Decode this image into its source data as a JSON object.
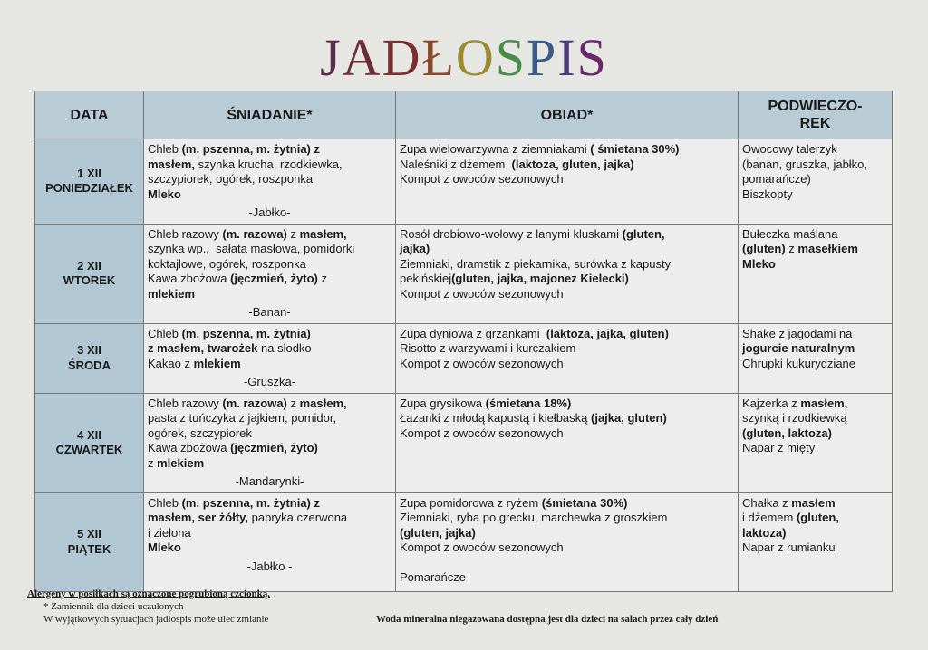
{
  "title": "JADŁOSPIS",
  "title_colors": [
    "#5a2a4a",
    "#6b2d3a",
    "#7a3030",
    "#8a4a2a",
    "#9a8a30",
    "#4a8a4a",
    "#3a5a8a",
    "#4a3a7a",
    "#6a2a6a"
  ],
  "headers": [
    "DATA",
    "ŚNIADANIE*",
    "OBIAD*",
    "PODWIECZO-\nREK"
  ],
  "rows": [
    {
      "date": "1 XII",
      "day": "PONIEDZIAŁEK",
      "h": 91,
      "breakfast": [
        [
          [
            "Chleb ",
            0
          ],
          [
            "(m. pszenna, m. żytnia) z",
            1
          ]
        ],
        [
          [
            "masłem,",
            1
          ],
          [
            " szynka krucha, rzodkiewka,",
            0
          ]
        ],
        [
          [
            "szczypiorek, ogórek, roszponka",
            0
          ]
        ],
        [
          [
            "Mleko",
            1
          ]
        ]
      ],
      "fruit": "-Jabłko-",
      "lunch": [
        [
          [
            "Zupa wielowarzywna z ziemniakami ",
            0
          ],
          [
            "( śmietana 30%)",
            1
          ]
        ],
        [
          [
            "Naleśniki z dżemem  ",
            0
          ],
          [
            "(laktoza, gluten, jajka)",
            1
          ]
        ],
        [
          [
            "Kompot z owoców sezonowych",
            0
          ]
        ]
      ],
      "snack": [
        [
          [
            "Owocowy talerzyk",
            0
          ]
        ],
        [
          [
            "(banan, gruszka, jabłko,",
            0
          ]
        ],
        [
          [
            "pomarańcze)",
            0
          ]
        ],
        [
          [
            "Biszkopty",
            0
          ]
        ]
      ]
    },
    {
      "date": "2 XII",
      "day": "WTOREK",
      "h": 110,
      "breakfast": [
        [
          [
            "Chleb razowy ",
            0
          ],
          [
            "(m. razowa)",
            1
          ],
          [
            " z ",
            0
          ],
          [
            "masłem,",
            1
          ]
        ],
        [
          [
            "szynka wp.,  sałata masłowa, pomidorki",
            0
          ]
        ],
        [
          [
            "koktajlowe, ogórek, roszponka",
            0
          ]
        ],
        [
          [
            "Kawa zbożowa ",
            0
          ],
          [
            "(jęczmień, żyto)",
            1
          ],
          [
            " z",
            0
          ]
        ],
        [
          [
            "mlekiem",
            1
          ]
        ]
      ],
      "fruit": "-Banan-",
      "lunch": [
        [
          [
            "Rosół drobiowo-wołowy z lanymi kluskami ",
            0
          ],
          [
            "(gluten,",
            1
          ]
        ],
        [
          [
            "jajka)",
            1
          ]
        ],
        [
          [
            "Ziemniaki, dramstik z piekarnika, surówka z kapusty",
            0
          ]
        ],
        [
          [
            "pekińskiej",
            0
          ],
          [
            "(gluten, jajka, majonez Kielecki)",
            1
          ]
        ],
        [
          [
            "Kompot z owoców sezonowych",
            0
          ]
        ]
      ],
      "snack": [
        [
          [
            "Bułeczka maślana",
            0
          ]
        ],
        [
          [
            "(gluten)",
            1
          ],
          [
            " z ",
            0
          ],
          [
            "masełkiem",
            1
          ]
        ],
        [
          [
            "Mleko",
            1
          ]
        ]
      ]
    },
    {
      "date": "3 XII",
      "day": "ŚRODA",
      "h": 75,
      "breakfast": [
        [
          [
            "Chleb ",
            0
          ],
          [
            "(m. pszenna, m. żytnia)",
            1
          ]
        ],
        [
          [
            "z masłem, twarożek",
            1
          ],
          [
            " na słodko",
            0
          ]
        ],
        [
          [
            "Kakao z ",
            0
          ],
          [
            "mlekiem",
            1
          ]
        ]
      ],
      "fruit": "-Gruszka-",
      "lunch": [
        [
          [
            "Zupa dyniowa z grzankami  ",
            0
          ],
          [
            "(laktoza, jajka, gluten)",
            1
          ]
        ],
        [
          [
            "Risotto z warzywami i kurczakiem",
            0
          ]
        ],
        [
          [
            "Kompot z owoców sezonowych",
            0
          ]
        ]
      ],
      "snack": [
        [
          [
            "Shake z jagodami na",
            0
          ]
        ],
        [
          [
            "jogurcie naturalnym",
            1
          ]
        ],
        [
          [
            "Chrupki kukurydziane",
            0
          ]
        ]
      ]
    },
    {
      "date": "4 XII",
      "day": "CZWARTEK",
      "h": 110,
      "breakfast": [
        [
          [
            "Chleb razowy ",
            0
          ],
          [
            "(m. razowa)",
            1
          ],
          [
            " z ",
            0
          ],
          [
            "masłem,",
            1
          ]
        ],
        [
          [
            "pasta z tuńczyka z jajkiem, pomidor,",
            0
          ]
        ],
        [
          [
            "ogórek, szczypiorek",
            0
          ]
        ],
        [
          [
            "Kawa zbożowa ",
            0
          ],
          [
            "(jęczmień, żyto)",
            1
          ]
        ],
        [
          [
            "z ",
            0
          ],
          [
            "mlekiem",
            1
          ]
        ]
      ],
      "fruit": "-Mandarynki-",
      "lunch": [
        [
          [
            "Zupa grysikowa ",
            0
          ],
          [
            "(śmietana 18%)",
            1
          ]
        ],
        [
          [
            "Łazanki z młodą kapustą i kiełbaską ",
            0
          ],
          [
            "(jajka, gluten)",
            1
          ]
        ],
        [
          [
            "Kompot z owoców sezonowych",
            0
          ]
        ]
      ],
      "snack": [
        [
          [
            "Kajzerka z ",
            0
          ],
          [
            "masłem,",
            1
          ]
        ],
        [
          [
            "szynką i rzodkiewką",
            0
          ]
        ],
        [
          [
            "(gluten, laktoza)",
            1
          ]
        ],
        [
          [
            "Napar z mięty",
            0
          ]
        ]
      ]
    },
    {
      "date": "5 XII",
      "day": "PIĄTEK",
      "h": 109,
      "breakfast": [
        [
          [
            "Chleb ",
            0
          ],
          [
            "(m. pszenna, m. żytnia) z",
            1
          ]
        ],
        [
          [
            "masłem, ser żółty,",
            1
          ],
          [
            " papryka czerwona",
            0
          ]
        ],
        [
          [
            "i zielona",
            0
          ]
        ],
        [
          [
            "Mleko",
            1
          ]
        ]
      ],
      "fruit": "-Jabłko -",
      "lunch": [
        [
          [
            "Zupa pomidorowa z ryżem ",
            0
          ],
          [
            "(śmietana 30%)",
            1
          ]
        ],
        [
          [
            "Ziemniaki, ryba po grecku, marchewka z groszkiem",
            0
          ]
        ],
        [
          [
            "(gluten, jajka)",
            1
          ]
        ],
        [
          [
            "Kompot z owoców sezonowych",
            0
          ]
        ],
        [
          [
            "",
            0
          ]
        ],
        [
          [
            "Pomarańcze",
            0
          ]
        ]
      ],
      "snack": [
        [
          [
            "Chałka z ",
            0
          ],
          [
            "masłem",
            1
          ]
        ],
        [
          [
            "i dżemem ",
            0
          ],
          [
            "(gluten,",
            1
          ]
        ],
        [
          [
            "laktoza)",
            1
          ]
        ],
        [
          [
            "Napar z rumianku",
            0
          ]
        ]
      ]
    }
  ],
  "footer": {
    "allergens": "Alergeny w posiłkach są oznaczone pogrubioną czcionką.",
    "substitute": "* Zamiennik dla dzieci uczulonych",
    "change": "W wyjątkowych sytuacjach jadłospis może ulec zmianie",
    "water": "Woda mineralna niegazowana dostępna jest dla dzieci na salach przez cały dzień"
  }
}
